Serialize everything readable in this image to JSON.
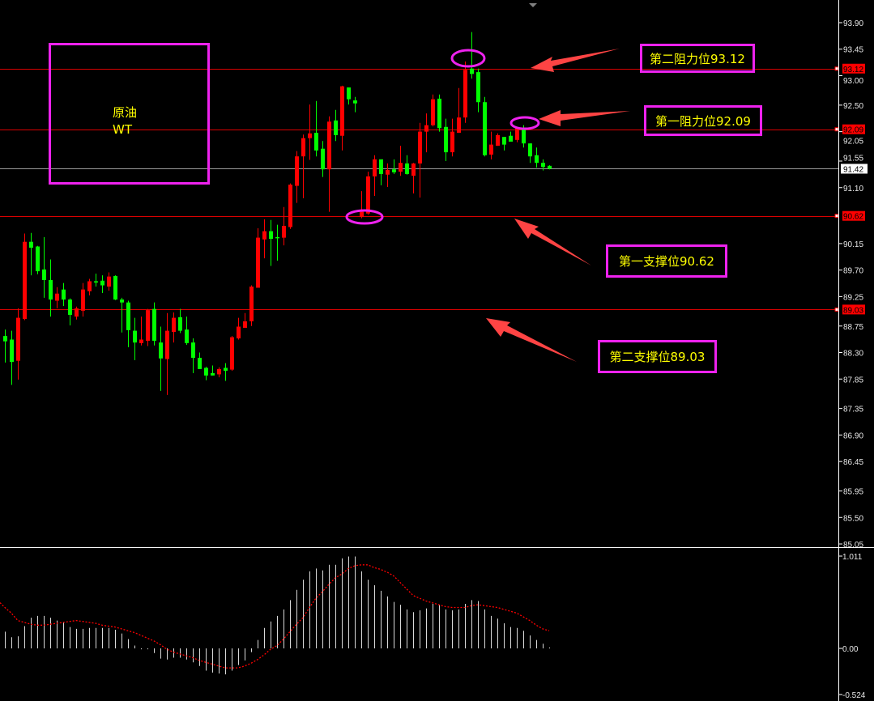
{
  "chart_data": {
    "type": "candlestick",
    "up_color": "#ff0000",
    "down_color": "#00ff00",
    "background": "#000000",
    "price_axis": {
      "ticks": [
        "93.90",
        "93.45",
        "93.00",
        "92.50",
        "92.05",
        "91.55",
        "91.10",
        "90.15",
        "89.70",
        "89.25",
        "88.75",
        "88.30",
        "87.85",
        "87.35",
        "86.90",
        "86.45",
        "85.95",
        "85.50",
        "85.05"
      ],
      "range": [
        85.05,
        93.9
      ]
    },
    "levels": [
      {
        "value": 93.12,
        "label": "93.12",
        "color": "#ff0000"
      },
      {
        "value": 92.09,
        "label": "92.09",
        "color": "#ff0000"
      },
      {
        "value": 90.62,
        "label": "90.62",
        "color": "#ff0000"
      },
      {
        "value": 89.03,
        "label": "89.03",
        "color": "#ff0000"
      }
    ],
    "current_price": {
      "value": 91.42,
      "label": "91.42"
    },
    "ohlc": [
      [
        88.58,
        88.69,
        88.13,
        88.49
      ],
      [
        88.52,
        88.67,
        87.75,
        88.14
      ],
      [
        88.16,
        89.05,
        87.84,
        88.89
      ],
      [
        88.87,
        90.32,
        88.85,
        90.18
      ],
      [
        90.18,
        90.33,
        89.61,
        90.08
      ],
      [
        90.1,
        90.11,
        89.63,
        89.68
      ],
      [
        89.71,
        90.26,
        89.23,
        89.53
      ],
      [
        89.53,
        89.88,
        88.91,
        89.2
      ],
      [
        89.18,
        89.41,
        89.05,
        89.3
      ],
      [
        89.37,
        89.48,
        89.09,
        89.2
      ],
      [
        89.2,
        89.22,
        88.76,
        88.94
      ],
      [
        88.91,
        89.08,
        88.86,
        89.05
      ],
      [
        89.01,
        89.48,
        88.91,
        89.37
      ],
      [
        89.34,
        89.55,
        89.27,
        89.51
      ],
      [
        89.51,
        89.64,
        89.42,
        89.49
      ],
      [
        89.52,
        89.61,
        89.31,
        89.44
      ],
      [
        89.42,
        89.66,
        89.35,
        89.59
      ],
      [
        89.6,
        89.61,
        89.19,
        89.2
      ],
      [
        89.2,
        89.23,
        88.64,
        89.15
      ],
      [
        89.15,
        89.18,
        88.39,
        88.68
      ],
      [
        88.67,
        88.89,
        88.17,
        88.47
      ],
      [
        88.46,
        88.91,
        88.42,
        88.52
      ],
      [
        88.5,
        89.04,
        88.41,
        89.02
      ],
      [
        89.04,
        89.15,
        88.42,
        88.5
      ],
      [
        88.47,
        88.74,
        87.65,
        88.2
      ],
      [
        88.19,
        88.97,
        87.58,
        88.67
      ],
      [
        88.65,
        88.98,
        88.47,
        88.89
      ],
      [
        88.9,
        89.04,
        88.63,
        88.67
      ],
      [
        88.69,
        88.91,
        88.43,
        88.46
      ],
      [
        88.47,
        88.54,
        87.95,
        88.21
      ],
      [
        88.21,
        88.3,
        88.02,
        88.02
      ],
      [
        88.04,
        88.06,
        87.83,
        87.91
      ],
      [
        87.95,
        88.08,
        87.91,
        87.91
      ],
      [
        87.93,
        88.05,
        87.88,
        88.02
      ],
      [
        88.04,
        88.12,
        87.82,
        87.99
      ],
      [
        88.01,
        88.58,
        87.99,
        88.56
      ],
      [
        88.54,
        88.89,
        88.52,
        88.74
      ],
      [
        88.72,
        88.97,
        88.72,
        88.83
      ],
      [
        88.83,
        89.44,
        88.75,
        89.42
      ],
      [
        89.4,
        90.41,
        89.4,
        90.25
      ],
      [
        90.22,
        90.56,
        89.9,
        90.36
      ],
      [
        90.36,
        90.55,
        89.77,
        90.23
      ],
      [
        90.26,
        90.47,
        89.86,
        90.25
      ],
      [
        90.25,
        90.77,
        90.12,
        90.45
      ],
      [
        90.43,
        91.17,
        90.4,
        91.15
      ],
      [
        91.13,
        91.72,
        90.84,
        91.63
      ],
      [
        91.63,
        92.0,
        90.92,
        91.94
      ],
      [
        91.94,
        92.51,
        91.57,
        92.02
      ],
      [
        92.03,
        92.57,
        91.63,
        91.73
      ],
      [
        91.76,
        91.89,
        91.28,
        91.41
      ],
      [
        91.41,
        92.31,
        90.69,
        92.22
      ],
      [
        92.24,
        92.42,
        91.89,
        91.99
      ],
      [
        91.98,
        92.83,
        91.73,
        92.82
      ],
      [
        92.8,
        92.8,
        92.51,
        92.6
      ],
      [
        92.58,
        92.64,
        92.38,
        92.53
      ],
      [
        90.6,
        91.04,
        90.58,
        90.69
      ],
      [
        90.66,
        91.37,
        90.64,
        91.29
      ],
      [
        91.29,
        91.65,
        90.96,
        91.58
      ],
      [
        91.58,
        91.58,
        91.14,
        91.33
      ],
      [
        91.32,
        91.51,
        91.11,
        91.4
      ],
      [
        91.41,
        91.58,
        91.33,
        91.36
      ],
      [
        91.37,
        91.81,
        91.3,
        91.52
      ],
      [
        91.51,
        91.65,
        91.32,
        91.33
      ],
      [
        91.3,
        91.52,
        91.0,
        91.51
      ],
      [
        91.51,
        92.2,
        90.93,
        92.05
      ],
      [
        92.05,
        92.36,
        91.7,
        92.16
      ],
      [
        92.16,
        92.68,
        92.14,
        92.6
      ],
      [
        92.61,
        92.68,
        92.05,
        92.11
      ],
      [
        92.13,
        92.27,
        91.55,
        91.7
      ],
      [
        91.7,
        92.27,
        91.63,
        92.05
      ],
      [
        92.03,
        92.79,
        92.03,
        92.29
      ],
      [
        92.29,
        93.24,
        92.2,
        93.1
      ],
      [
        93.12,
        93.74,
        92.95,
        93.03
      ],
      [
        93.06,
        93.12,
        92.38,
        92.55
      ],
      [
        92.55,
        92.64,
        91.63,
        91.65
      ],
      [
        91.66,
        92.05,
        91.58,
        91.83
      ],
      [
        91.81,
        92.02,
        91.81,
        91.99
      ],
      [
        91.96,
        91.96,
        91.73,
        91.83
      ],
      [
        91.98,
        92.05,
        91.88,
        91.88
      ],
      [
        91.91,
        92.13,
        91.87,
        92.11
      ],
      [
        92.09,
        92.16,
        91.78,
        91.85
      ],
      [
        91.85,
        91.85,
        91.52,
        91.63
      ],
      [
        91.65,
        91.78,
        91.44,
        91.52
      ],
      [
        91.52,
        91.58,
        91.39,
        91.45
      ],
      [
        91.47,
        91.48,
        91.41,
        91.42
      ]
    ],
    "macd": {
      "ticks": [
        "1.011",
        "0.00",
        "-0.524"
      ],
      "range": [
        -0.524,
        1.011
      ],
      "histogram_color": "#ffffff",
      "signal_color": "#ff0000",
      "histogram": [
        0.18,
        0.12,
        0.13,
        0.24,
        0.33,
        0.35,
        0.35,
        0.33,
        0.3,
        0.28,
        0.23,
        0.21,
        0.21,
        0.22,
        0.22,
        0.22,
        0.22,
        0.2,
        0.16,
        0.1,
        0.03,
        -0.01,
        -0.01,
        -0.05,
        -0.11,
        -0.12,
        -0.1,
        -0.1,
        -0.12,
        -0.15,
        -0.19,
        -0.24,
        -0.26,
        -0.27,
        -0.28,
        -0.24,
        -0.18,
        -0.13,
        -0.04,
        0.09,
        0.22,
        0.29,
        0.35,
        0.42,
        0.52,
        0.63,
        0.74,
        0.83,
        0.86,
        0.84,
        0.9,
        0.9,
        0.97,
        0.99,
        0.99,
        0.83,
        0.74,
        0.68,
        0.62,
        0.56,
        0.5,
        0.47,
        0.42,
        0.39,
        0.41,
        0.43,
        0.48,
        0.47,
        0.42,
        0.41,
        0.42,
        0.48,
        0.52,
        0.51,
        0.42,
        0.35,
        0.32,
        0.27,
        0.23,
        0.22,
        0.19,
        0.14,
        0.09,
        0.05,
        0.01
      ],
      "signal": [
        0.44,
        0.38,
        0.3,
        0.28,
        0.26,
        0.25,
        0.25,
        0.26,
        0.27,
        0.28,
        0.29,
        0.3,
        0.29,
        0.28,
        0.27,
        0.25,
        0.24,
        0.23,
        0.21,
        0.19,
        0.17,
        0.14,
        0.11,
        0.08,
        0.04,
        -0.01,
        -0.04,
        -0.06,
        -0.08,
        -0.1,
        -0.13,
        -0.15,
        -0.17,
        -0.19,
        -0.21,
        -0.21,
        -0.21,
        -0.19,
        -0.16,
        -0.12,
        -0.07,
        -0.01,
        0.03,
        0.1,
        0.18,
        0.26,
        0.33,
        0.44,
        0.54,
        0.61,
        0.69,
        0.76,
        0.8,
        0.86,
        0.89,
        0.9,
        0.9,
        0.87,
        0.85,
        0.82,
        0.78,
        0.71,
        0.64,
        0.57,
        0.54,
        0.51,
        0.49,
        0.47,
        0.45,
        0.44,
        0.44,
        0.44,
        0.46,
        0.47,
        0.46,
        0.45,
        0.44,
        0.42,
        0.4,
        0.38,
        0.34,
        0.3,
        0.25,
        0.21,
        0.19
      ]
    }
  },
  "annotations": {
    "title_line1": "原油",
    "title_line2": "WT",
    "resistance2": "第二阻力位93.12",
    "resistance1": "第一阻力位92.09",
    "support1": "第一支撑位90.62",
    "support2": "第二支撑位89.03",
    "box_color": "#ee22ee",
    "text_color": "#ffff00",
    "arrow_color": "#ff4444"
  }
}
